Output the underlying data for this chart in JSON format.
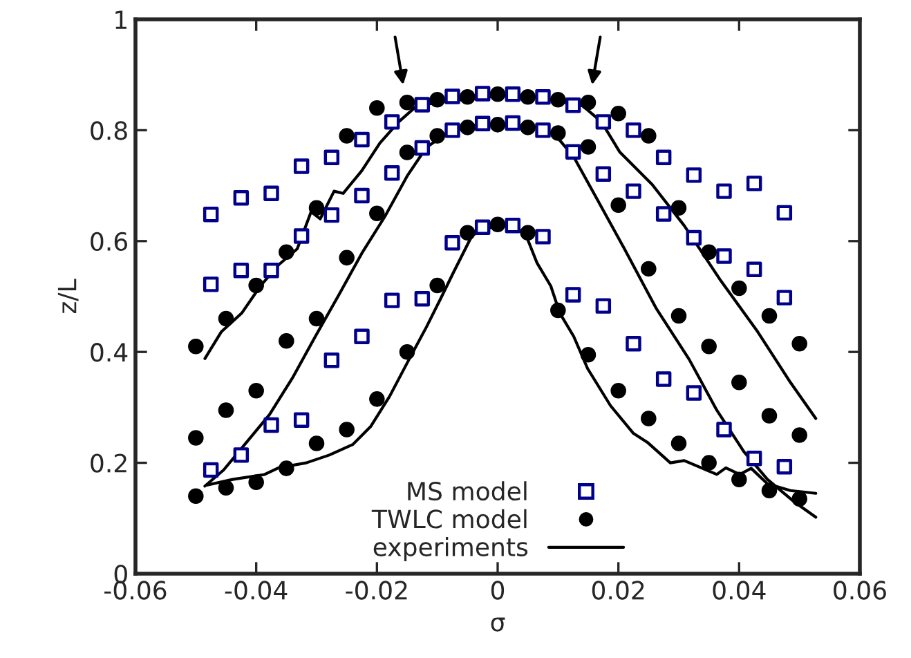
{
  "chart_data": {
    "type": "scatter",
    "xlabel": "σ",
    "ylabel": "z/L",
    "xlim": [
      -0.06,
      0.06
    ],
    "ylim": [
      0,
      1
    ],
    "xticks": [
      -0.06,
      -0.04,
      -0.02,
      0,
      0.02,
      0.04,
      0.06
    ],
    "yticks": [
      0,
      0.2,
      0.4,
      0.6,
      0.8,
      1
    ],
    "grid": false,
    "legend": "bottom",
    "series": [
      {
        "name": "MS model",
        "marker": "square",
        "color": "#00008b",
        "x": [
          -0.0475,
          -0.0425,
          -0.0375,
          -0.0325,
          -0.0275,
          -0.0225,
          -0.0175,
          -0.0125,
          -0.0075,
          -0.0025,
          0.0025,
          0.0075,
          0.0125,
          0.0175,
          0.0225,
          0.0275,
          0.0325,
          0.0375,
          0.0425,
          0.0475,
          -0.0475,
          -0.0425,
          -0.0375,
          -0.0325,
          -0.0275,
          -0.0225,
          -0.0175,
          -0.0125,
          -0.0075,
          -0.0025,
          0.0025,
          0.0075,
          0.0125,
          0.0175,
          0.0225,
          0.0275,
          0.0325,
          0.0375,
          0.0425,
          0.0475,
          -0.0475,
          -0.0425,
          -0.0375,
          -0.0325,
          -0.0275,
          -0.0225,
          -0.0175,
          -0.0125,
          -0.0075,
          -0.0025,
          0.0025,
          0.0075,
          0.0125,
          0.0175,
          0.0225,
          0.0275,
          0.0325,
          0.0375,
          0.0425,
          0.0475
        ],
        "values": [
          0.648,
          0.678,
          0.686,
          0.735,
          0.751,
          0.783,
          0.815,
          0.846,
          0.861,
          0.866,
          0.865,
          0.86,
          0.845,
          0.815,
          0.8,
          0.751,
          0.719,
          0.69,
          0.704,
          0.651,
          0.522,
          0.547,
          0.547,
          0.609,
          0.647,
          0.682,
          0.723,
          0.768,
          0.8,
          0.812,
          0.813,
          0.8,
          0.761,
          0.721,
          0.69,
          0.649,
          0.606,
          0.573,
          0.549,
          0.498,
          0.187,
          0.214,
          0.268,
          0.277,
          0.385,
          0.428,
          0.493,
          0.496,
          0.597,
          0.625,
          0.628,
          0.608,
          0.503,
          0.483,
          0.415,
          0.351,
          0.326,
          0.26,
          0.208,
          0.193
        ]
      },
      {
        "name": "TWLC model",
        "marker": "circle",
        "color": "#000000",
        "x": [
          -0.05,
          -0.045,
          -0.04,
          -0.035,
          -0.03,
          -0.025,
          -0.02,
          -0.015,
          -0.01,
          -0.005,
          0,
          0.005,
          0.01,
          0.015,
          0.02,
          0.025,
          0.03,
          0.035,
          0.04,
          0.045,
          0.05,
          -0.05,
          -0.045,
          -0.04,
          -0.035,
          -0.03,
          -0.025,
          -0.02,
          -0.015,
          -0.01,
          -0.005,
          0,
          0.005,
          0.01,
          0.015,
          0.02,
          0.025,
          0.03,
          0.035,
          0.04,
          0.045,
          0.05,
          -0.05,
          -0.045,
          -0.04,
          -0.035,
          -0.03,
          -0.025,
          -0.02,
          -0.015,
          -0.01,
          -0.005,
          0,
          0.005,
          0.01,
          0.015,
          0.02,
          0.025,
          0.03,
          0.035,
          0.04,
          0.045,
          0.05
        ],
        "values": [
          0.41,
          0.46,
          0.52,
          0.58,
          0.66,
          0.79,
          0.84,
          0.85,
          0.855,
          0.86,
          0.865,
          0.86,
          0.855,
          0.85,
          0.83,
          0.79,
          0.66,
          0.58,
          0.515,
          0.465,
          0.415,
          0.245,
          0.295,
          0.33,
          0.42,
          0.46,
          0.57,
          0.65,
          0.76,
          0.79,
          0.805,
          0.81,
          0.805,
          0.795,
          0.77,
          0.665,
          0.55,
          0.465,
          0.41,
          0.345,
          0.285,
          0.25,
          0.14,
          0.155,
          0.165,
          0.19,
          0.235,
          0.26,
          0.315,
          0.4,
          0.52,
          0.615,
          0.63,
          0.615,
          0.475,
          0.395,
          0.33,
          0.28,
          0.235,
          0.2,
          0.17,
          0.15,
          0.135
        ]
      },
      {
        "name": "experiments",
        "type": "line",
        "marker": "none",
        "line_style": "solid",
        "color": "#000000",
        "x": [
          -0.0485,
          -0.0458,
          -0.0424,
          -0.0393,
          -0.0363,
          -0.0332,
          -0.0309,
          -0.0294,
          -0.0271,
          -0.0256,
          -0.0225,
          -0.0195,
          -0.0164,
          -0.0134,
          -0.0088,
          0.0004,
          0.0065,
          0.0141,
          0.0172,
          0.0202,
          0.0256,
          0.0309,
          0.037,
          0.0431,
          0.0485,
          0.0527
        ],
        "values": [
          0.388,
          0.436,
          0.47,
          0.519,
          0.557,
          0.586,
          0.653,
          0.64,
          0.69,
          0.686,
          0.727,
          0.777,
          0.815,
          0.844,
          0.852,
          0.862,
          0.86,
          0.844,
          0.815,
          0.761,
          0.702,
          0.628,
          0.528,
          0.436,
          0.345,
          0.28
        ]
      },
      {
        "type": "line",
        "marker": "none",
        "line_style": "solid",
        "color": "#000000",
        "x": [
          -0.0485,
          -0.0454,
          -0.0416,
          -0.0378,
          -0.034,
          -0.0302,
          -0.0263,
          -0.0225,
          -0.0187,
          -0.0149,
          -0.0118,
          -0.008,
          -0.0042,
          0.0,
          0.0065,
          0.0095,
          0.0126,
          0.0164,
          0.021,
          0.0263,
          0.0317,
          0.0363,
          0.0408,
          0.0447,
          0.0492,
          0.0527
        ],
        "values": [
          0.158,
          0.187,
          0.237,
          0.287,
          0.353,
          0.428,
          0.503,
          0.578,
          0.644,
          0.719,
          0.769,
          0.798,
          0.809,
          0.81,
          0.806,
          0.792,
          0.752,
          0.677,
          0.586,
          0.478,
          0.387,
          0.295,
          0.22,
          0.17,
          0.129,
          0.102
        ]
      },
      {
        "type": "line",
        "marker": "none",
        "line_style": "solid",
        "color": "#000000",
        "x": [
          -0.0481,
          -0.0439,
          -0.0386,
          -0.0363,
          -0.0317,
          -0.0279,
          -0.024,
          -0.021,
          -0.0179,
          -0.0149,
          -0.0118,
          -0.0095,
          -0.0073,
          -0.0042,
          -0.0004,
          0.0027,
          0.0046,
          0.0065,
          0.0088,
          0.0103,
          0.0126,
          0.0149,
          0.0187,
          0.0225,
          0.0248,
          0.0286,
          0.0309,
          0.0363,
          0.0378,
          0.0401,
          0.042,
          0.0447,
          0.0485,
          0.0527
        ],
        "values": [
          0.16,
          0.17,
          0.179,
          0.191,
          0.2,
          0.214,
          0.233,
          0.266,
          0.32,
          0.382,
          0.445,
          0.495,
          0.544,
          0.611,
          0.628,
          0.626,
          0.613,
          0.561,
          0.519,
          0.47,
          0.428,
          0.37,
          0.303,
          0.253,
          0.237,
          0.2,
          0.204,
          0.179,
          0.191,
          0.179,
          0.19,
          0.162,
          0.15,
          0.145
        ]
      }
    ]
  }
}
